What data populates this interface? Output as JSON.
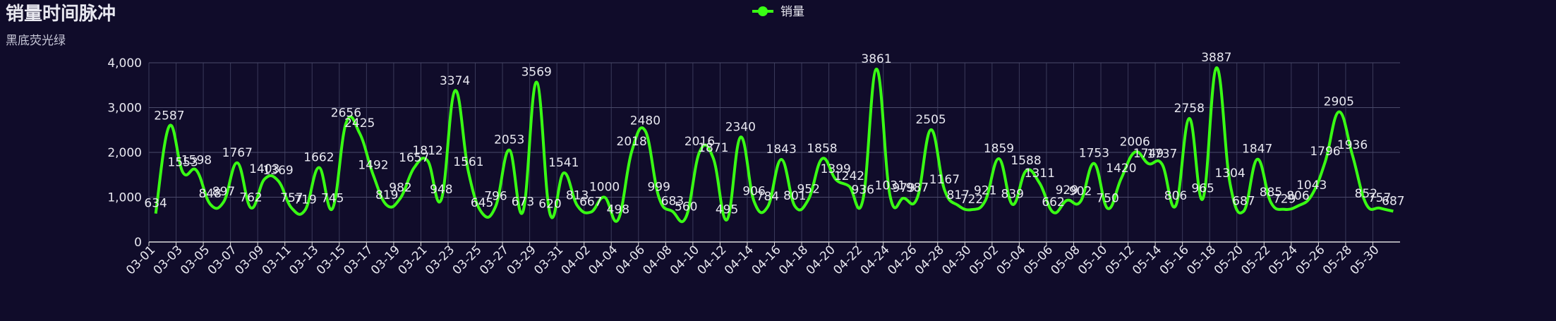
{
  "chart_data": {
    "type": "line",
    "title": "销量时间脉冲",
    "subtitle": "黑底荧光绿",
    "categories": [
      "03-01",
      null,
      "03-03",
      null,
      "03-05",
      null,
      "03-07",
      null,
      "03-09",
      null,
      "03-11",
      null,
      "03-13",
      null,
      "03-15",
      null,
      "03-17",
      null,
      "03-19",
      null,
      "03-21",
      null,
      "03-23",
      null,
      "03-25",
      null,
      "03-27",
      null,
      "03-29",
      null,
      "03-31",
      null,
      "04-02",
      null,
      "04-04",
      null,
      "04-06",
      null,
      "04-08",
      null,
      "04-10",
      null,
      "04-12",
      null,
      "04-14",
      null,
      "04-16",
      null,
      "04-18",
      null,
      "04-20",
      null,
      "04-22",
      null,
      "04-24",
      null,
      "04-26",
      null,
      "04-28",
      null,
      "04-30",
      null,
      "05-02",
      null,
      "05-04",
      null,
      "05-06",
      null,
      "05-08",
      null,
      "05-10",
      null,
      "05-12",
      null,
      "05-14",
      null,
      "05-16",
      null,
      "05-18",
      null,
      "05-20",
      null,
      "05-22",
      null,
      "05-24",
      null,
      "05-26",
      null,
      "05-28",
      null,
      "05-30",
      null
    ],
    "series": [
      {
        "name": "销量",
        "color": "#39ff14",
        "values": [
          634,
          2587,
          1553,
          1598,
          848,
          897,
          1767,
          762,
          1403,
          1369,
          757,
          719,
          1662,
          745,
          2656,
          2425,
          1492,
          819,
          982,
          1657,
          1812,
          948,
          3374,
          1561,
          645,
          796,
          2053,
          673,
          3569,
          620,
          1541,
          813,
          667,
          1000,
          498,
          2018,
          2480,
          999,
          683,
          560,
          2016,
          1871,
          495,
          2340,
          906,
          784,
          1843,
          801,
          952,
          1858,
          1399,
          1242,
          936,
          3861,
          1031,
          979,
          987,
          2505,
          1167,
          817,
          722,
          921,
          1859,
          839,
          1588,
          1311,
          662,
          929,
          902,
          1753,
          750,
          1420,
          2006,
          1749,
          1737,
          806,
          2758,
          965,
          3887,
          1304,
          687,
          1847,
          885,
          729,
          806,
          1043,
          1796,
          2905,
          1936,
          852,
          757,
          687
        ]
      }
    ],
    "ylim": [
      0,
      4000
    ],
    "yticks": [
      0,
      {
        "value": 1000,
        "label": "1,000"
      },
      {
        "value": 2000,
        "label": "2,000"
      },
      {
        "value": 3000,
        "label": "3,000"
      },
      {
        "value": 4000,
        "label": "4,000"
      }
    ],
    "grid": true
  }
}
